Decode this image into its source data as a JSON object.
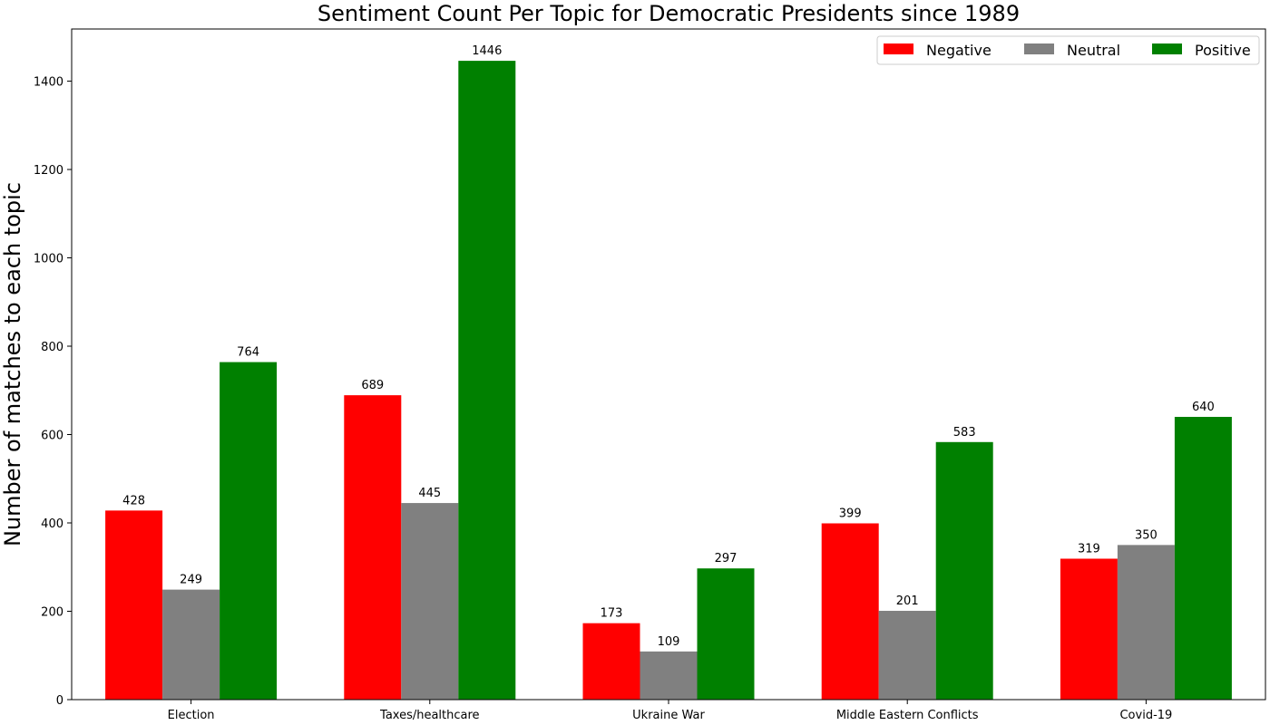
{
  "chart_data": {
    "type": "bar",
    "title": "Sentiment Count Per Topic for Democratic Presidents since 1989",
    "xlabel": "",
    "ylabel": "Number of matches to each topic",
    "categories": [
      "Election",
      "Taxes/healthcare",
      "Ukraine War",
      "Middle Eastern Conflicts",
      "Covid-19"
    ],
    "series": [
      {
        "name": "Negative",
        "color": "#ff0000",
        "values": [
          428,
          689,
          173,
          399,
          319
        ]
      },
      {
        "name": "Neutral",
        "color": "#808080",
        "values": [
          249,
          445,
          109,
          201,
          350
        ]
      },
      {
        "name": "Positive",
        "color": "#008000",
        "values": [
          764,
          1446,
          297,
          583,
          640
        ]
      }
    ],
    "ylim": [
      0,
      1518
    ],
    "yticks": [
      0,
      200,
      400,
      600,
      800,
      1000,
      1200,
      1400
    ],
    "data_labels": true,
    "grid": false,
    "legend_position": "top-right"
  }
}
